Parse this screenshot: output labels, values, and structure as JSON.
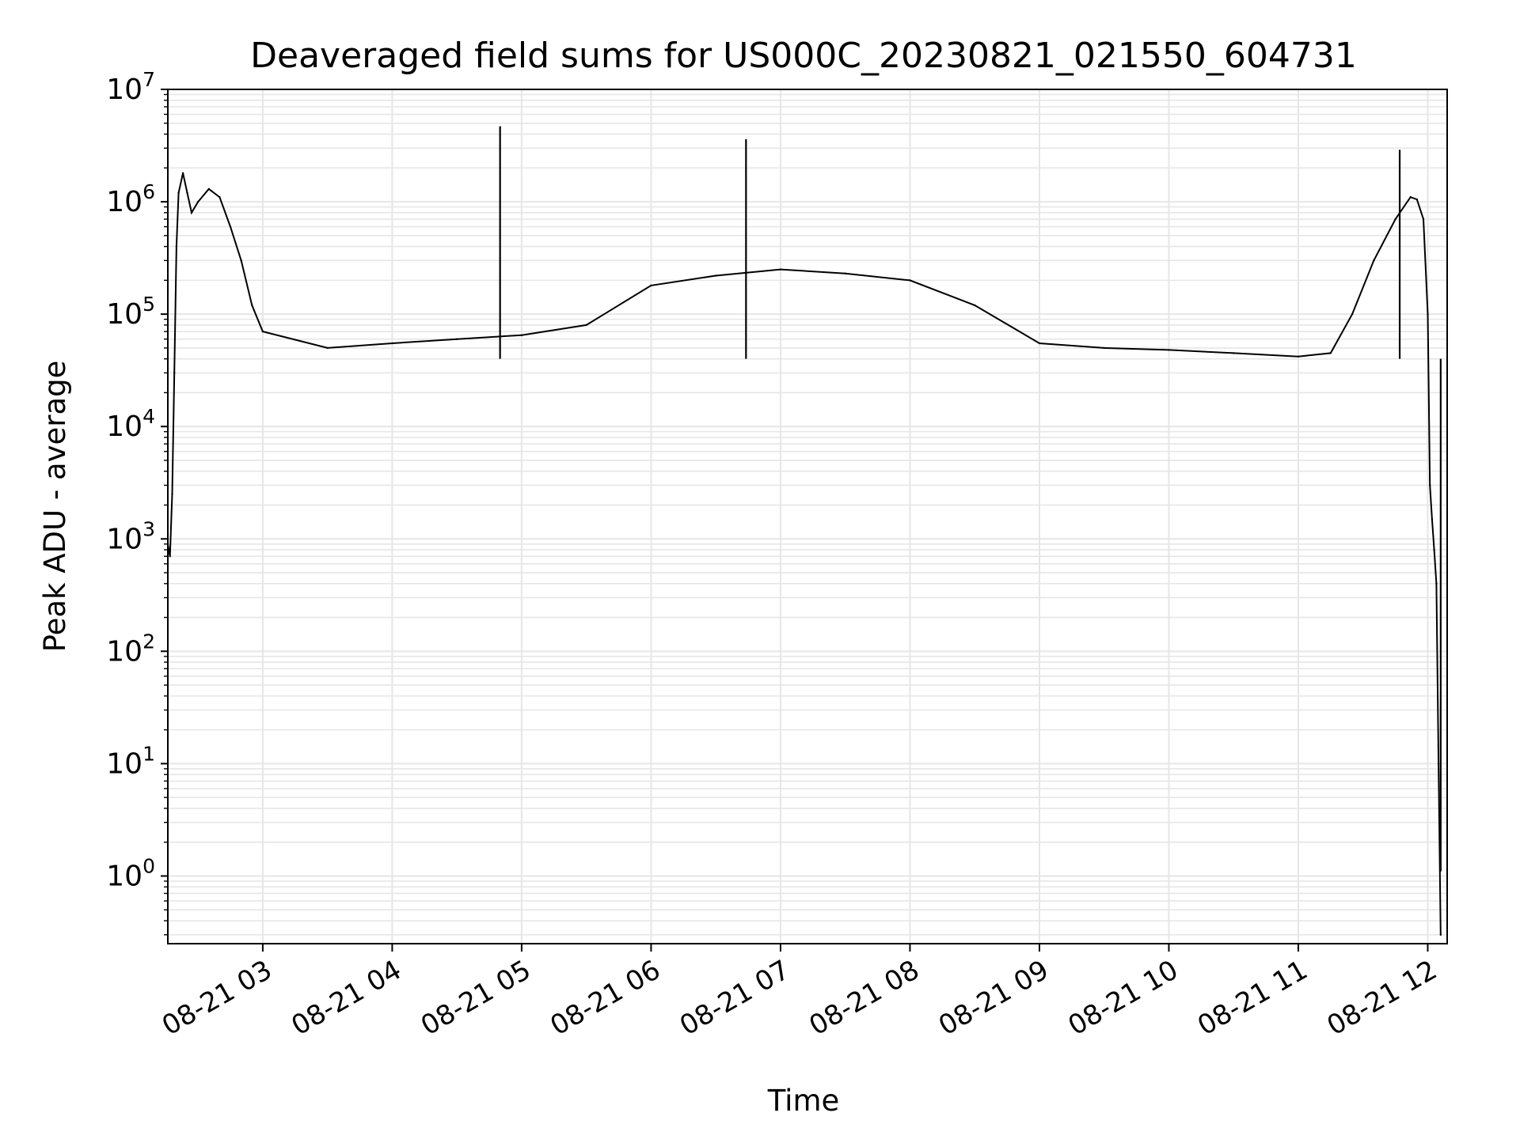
{
  "chart_data": {
    "type": "line",
    "title": "Deaveraged field sums for US000C_20230821_021550_604731",
    "xlabel": "Time",
    "ylabel": "Peak ADU - average",
    "y_scale": "log",
    "ylim": [
      0.25,
      10000000
    ],
    "xlim": [
      "2023-08-21 02:16",
      "2023-08-21 12:09"
    ],
    "grid": true,
    "legend": "none",
    "line_color": "#000000",
    "grid_color": "#e6e6e6",
    "x_ticks": [
      {
        "t": "2023-08-21 03:00",
        "label": "08-21 03"
      },
      {
        "t": "2023-08-21 04:00",
        "label": "08-21 04"
      },
      {
        "t": "2023-08-21 05:00",
        "label": "08-21 05"
      },
      {
        "t": "2023-08-21 06:00",
        "label": "08-21 06"
      },
      {
        "t": "2023-08-21 07:00",
        "label": "08-21 07"
      },
      {
        "t": "2023-08-21 08:00",
        "label": "08-21 08"
      },
      {
        "t": "2023-08-21 09:00",
        "label": "08-21 09"
      },
      {
        "t": "2023-08-21 10:00",
        "label": "08-21 10"
      },
      {
        "t": "2023-08-21 11:00",
        "label": "08-21 11"
      },
      {
        "t": "2023-08-21 12:00",
        "label": "08-21 12"
      }
    ],
    "y_ticks": [
      {
        "value": 1,
        "base": "10",
        "exp": "0"
      },
      {
        "value": 10,
        "base": "10",
        "exp": "1"
      },
      {
        "value": 100,
        "base": "10",
        "exp": "2"
      },
      {
        "value": 1000,
        "base": "10",
        "exp": "3"
      },
      {
        "value": 10000,
        "base": "10",
        "exp": "4"
      },
      {
        "value": 100000,
        "base": "10",
        "exp": "5"
      },
      {
        "value": 1000000,
        "base": "10",
        "exp": "6"
      },
      {
        "value": 10000000,
        "base": "10",
        "exp": "7"
      }
    ],
    "series": [
      {
        "points": [
          [
            "2023-08-21 02:16",
            900
          ],
          [
            "2023-08-21 02:17",
            700
          ],
          [
            "2023-08-21 02:18",
            2500
          ],
          [
            "2023-08-21 02:19",
            30000
          ],
          [
            "2023-08-21 02:20",
            400000
          ],
          [
            "2023-08-21 02:21",
            1200000
          ],
          [
            "2023-08-21 02:23",
            1800000
          ],
          [
            "2023-08-21 02:25",
            1200000
          ],
          [
            "2023-08-21 02:27",
            800000
          ],
          [
            "2023-08-21 02:30",
            1000000
          ],
          [
            "2023-08-21 02:35",
            1300000
          ],
          [
            "2023-08-21 02:40",
            1100000
          ],
          [
            "2023-08-21 02:45",
            600000
          ],
          [
            "2023-08-21 02:50",
            300000
          ],
          [
            "2023-08-21 02:55",
            120000
          ],
          [
            "2023-08-21 03:00",
            70000
          ],
          [
            "2023-08-21 03:30",
            50000
          ],
          [
            "2023-08-21 04:00",
            55000
          ],
          [
            "2023-08-21 04:30",
            60000
          ],
          [
            "2023-08-21 05:00",
            65000
          ],
          [
            "2023-08-21 05:30",
            80000
          ],
          [
            "2023-08-21 06:00",
            180000
          ],
          [
            "2023-08-21 06:30",
            220000
          ],
          [
            "2023-08-21 07:00",
            250000
          ],
          [
            "2023-08-21 07:30",
            230000
          ],
          [
            "2023-08-21 08:00",
            200000
          ],
          [
            "2023-08-21 08:30",
            120000
          ],
          [
            "2023-08-21 09:00",
            55000
          ],
          [
            "2023-08-21 09:30",
            50000
          ],
          [
            "2023-08-21 10:00",
            48000
          ],
          [
            "2023-08-21 10:30",
            45000
          ],
          [
            "2023-08-21 11:00",
            42000
          ],
          [
            "2023-08-21 11:15",
            45000
          ],
          [
            "2023-08-21 11:25",
            100000
          ],
          [
            "2023-08-21 11:35",
            300000
          ],
          [
            "2023-08-21 11:45",
            700000
          ],
          [
            "2023-08-21 11:52",
            1100000
          ],
          [
            "2023-08-21 11:55",
            1050000
          ],
          [
            "2023-08-21 11:58",
            700000
          ],
          [
            "2023-08-21 12:00",
            100000
          ],
          [
            "2023-08-21 12:01",
            3000
          ],
          [
            "2023-08-21 12:02",
            1500
          ],
          [
            "2023-08-21 12:03",
            800
          ],
          [
            "2023-08-21 12:04",
            400
          ],
          [
            "2023-08-21 12:05",
            10
          ],
          [
            "2023-08-21 12:06",
            0.3
          ]
        ],
        "spikes": [
          [
            "2023-08-21 04:50",
            4700000
          ],
          [
            "2023-08-21 06:44",
            3600000
          ],
          [
            "2023-08-21 11:47",
            2900000
          ],
          [
            "2023-08-21 12:06",
            1.1
          ]
        ]
      }
    ]
  }
}
